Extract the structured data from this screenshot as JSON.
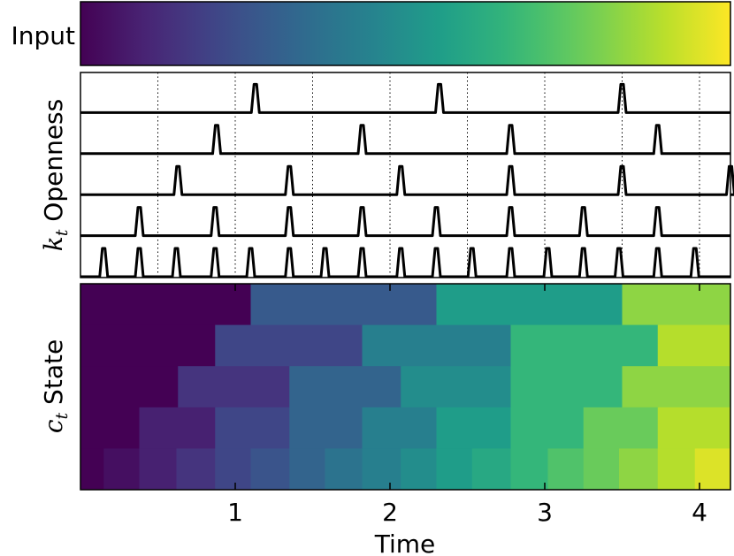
{
  "chart_data": [
    {
      "type": "heatmap",
      "panel": "input",
      "ylabel": "Input",
      "colormap": "viridis",
      "value_range": [
        0,
        1
      ],
      "description_values": {
        "start": 0.0,
        "end": 1.0
      }
    },
    {
      "type": "line",
      "panel": "openness",
      "ylabel_symbol": "k",
      "ylabel_subscript": "t",
      "ylabel": "Openness",
      "xlim": [
        0.0,
        4.2
      ],
      "vertical_dotted_lines": [
        0.5,
        1.0,
        1.5,
        2.0,
        2.5,
        3.0,
        3.5,
        4.0
      ],
      "series": [
        {
          "values": [
            1.13,
            2.32,
            3.5
          ]
        },
        {
          "values": [
            0.88,
            1.82,
            2.78,
            3.73
          ]
        },
        {
          "values": [
            0.63,
            1.35,
            2.07,
            2.78,
            3.5,
            4.2
          ]
        },
        {
          "values": [
            0.38,
            0.87,
            1.35,
            1.82,
            2.3,
            2.78,
            3.25,
            3.73
          ]
        },
        {
          "values": [
            0.15,
            0.38,
            0.62,
            0.87,
            1.1,
            1.35,
            1.58,
            1.82,
            2.07,
            2.3,
            2.53,
            2.78,
            3.02,
            3.25,
            3.48,
            3.73,
            3.97
          ]
        }
      ]
    },
    {
      "type": "heatmap",
      "panel": "state",
      "ylabel_symbol": "c",
      "ylabel_subscript": "t",
      "ylabel": "State",
      "xlim": [
        0.0,
        4.2
      ],
      "colormap": "viridis",
      "rows": [
        {
          "segments": [
            [
              0.0,
              1.1,
              0.0
            ],
            [
              1.1,
              2.3,
              0.28
            ],
            [
              2.3,
              3.5,
              0.55
            ],
            [
              3.5,
              4.2,
              0.83
            ]
          ]
        },
        {
          "segments": [
            [
              0.0,
              0.87,
              0.0
            ],
            [
              0.87,
              1.82,
              0.21
            ],
            [
              1.82,
              2.78,
              0.43
            ],
            [
              2.78,
              3.73,
              0.66
            ],
            [
              3.73,
              4.2,
              0.89
            ]
          ]
        },
        {
          "segments": [
            [
              0.0,
              0.63,
              0.0
            ],
            [
              0.63,
              1.35,
              0.15
            ],
            [
              1.35,
              2.07,
              0.32
            ],
            [
              2.07,
              2.78,
              0.49
            ],
            [
              2.78,
              3.5,
              0.66
            ],
            [
              3.5,
              4.2,
              0.83
            ]
          ]
        },
        {
          "segments": [
            [
              0.0,
              0.38,
              0.0
            ],
            [
              0.38,
              0.87,
              0.09
            ],
            [
              0.87,
              1.35,
              0.21
            ],
            [
              1.35,
              1.82,
              0.32
            ],
            [
              1.82,
              2.3,
              0.43
            ],
            [
              2.3,
              2.78,
              0.55
            ],
            [
              2.78,
              3.25,
              0.66
            ],
            [
              3.25,
              3.73,
              0.77
            ],
            [
              3.73,
              4.2,
              0.89
            ]
          ]
        },
        {
          "segments": [
            [
              0.0,
              0.15,
              0.0
            ],
            [
              0.15,
              0.38,
              0.04
            ],
            [
              0.38,
              0.62,
              0.09
            ],
            [
              0.62,
              0.87,
              0.15
            ],
            [
              0.87,
              1.1,
              0.21
            ],
            [
              1.1,
              1.35,
              0.26
            ],
            [
              1.35,
              1.58,
              0.32
            ],
            [
              1.58,
              1.82,
              0.38
            ],
            [
              1.82,
              2.07,
              0.43
            ],
            [
              2.07,
              2.3,
              0.49
            ],
            [
              2.3,
              2.53,
              0.55
            ],
            [
              2.53,
              2.78,
              0.6
            ],
            [
              2.78,
              3.02,
              0.66
            ],
            [
              3.02,
              3.25,
              0.72
            ],
            [
              3.25,
              3.48,
              0.77
            ],
            [
              3.48,
              3.73,
              0.83
            ],
            [
              3.73,
              3.97,
              0.89
            ],
            [
              3.97,
              4.2,
              0.95
            ]
          ]
        }
      ],
      "xlabel": "Time",
      "xticks": [
        1,
        2,
        3,
        4
      ],
      "xtick_labels": [
        "1",
        "2",
        "3",
        "4"
      ]
    }
  ]
}
